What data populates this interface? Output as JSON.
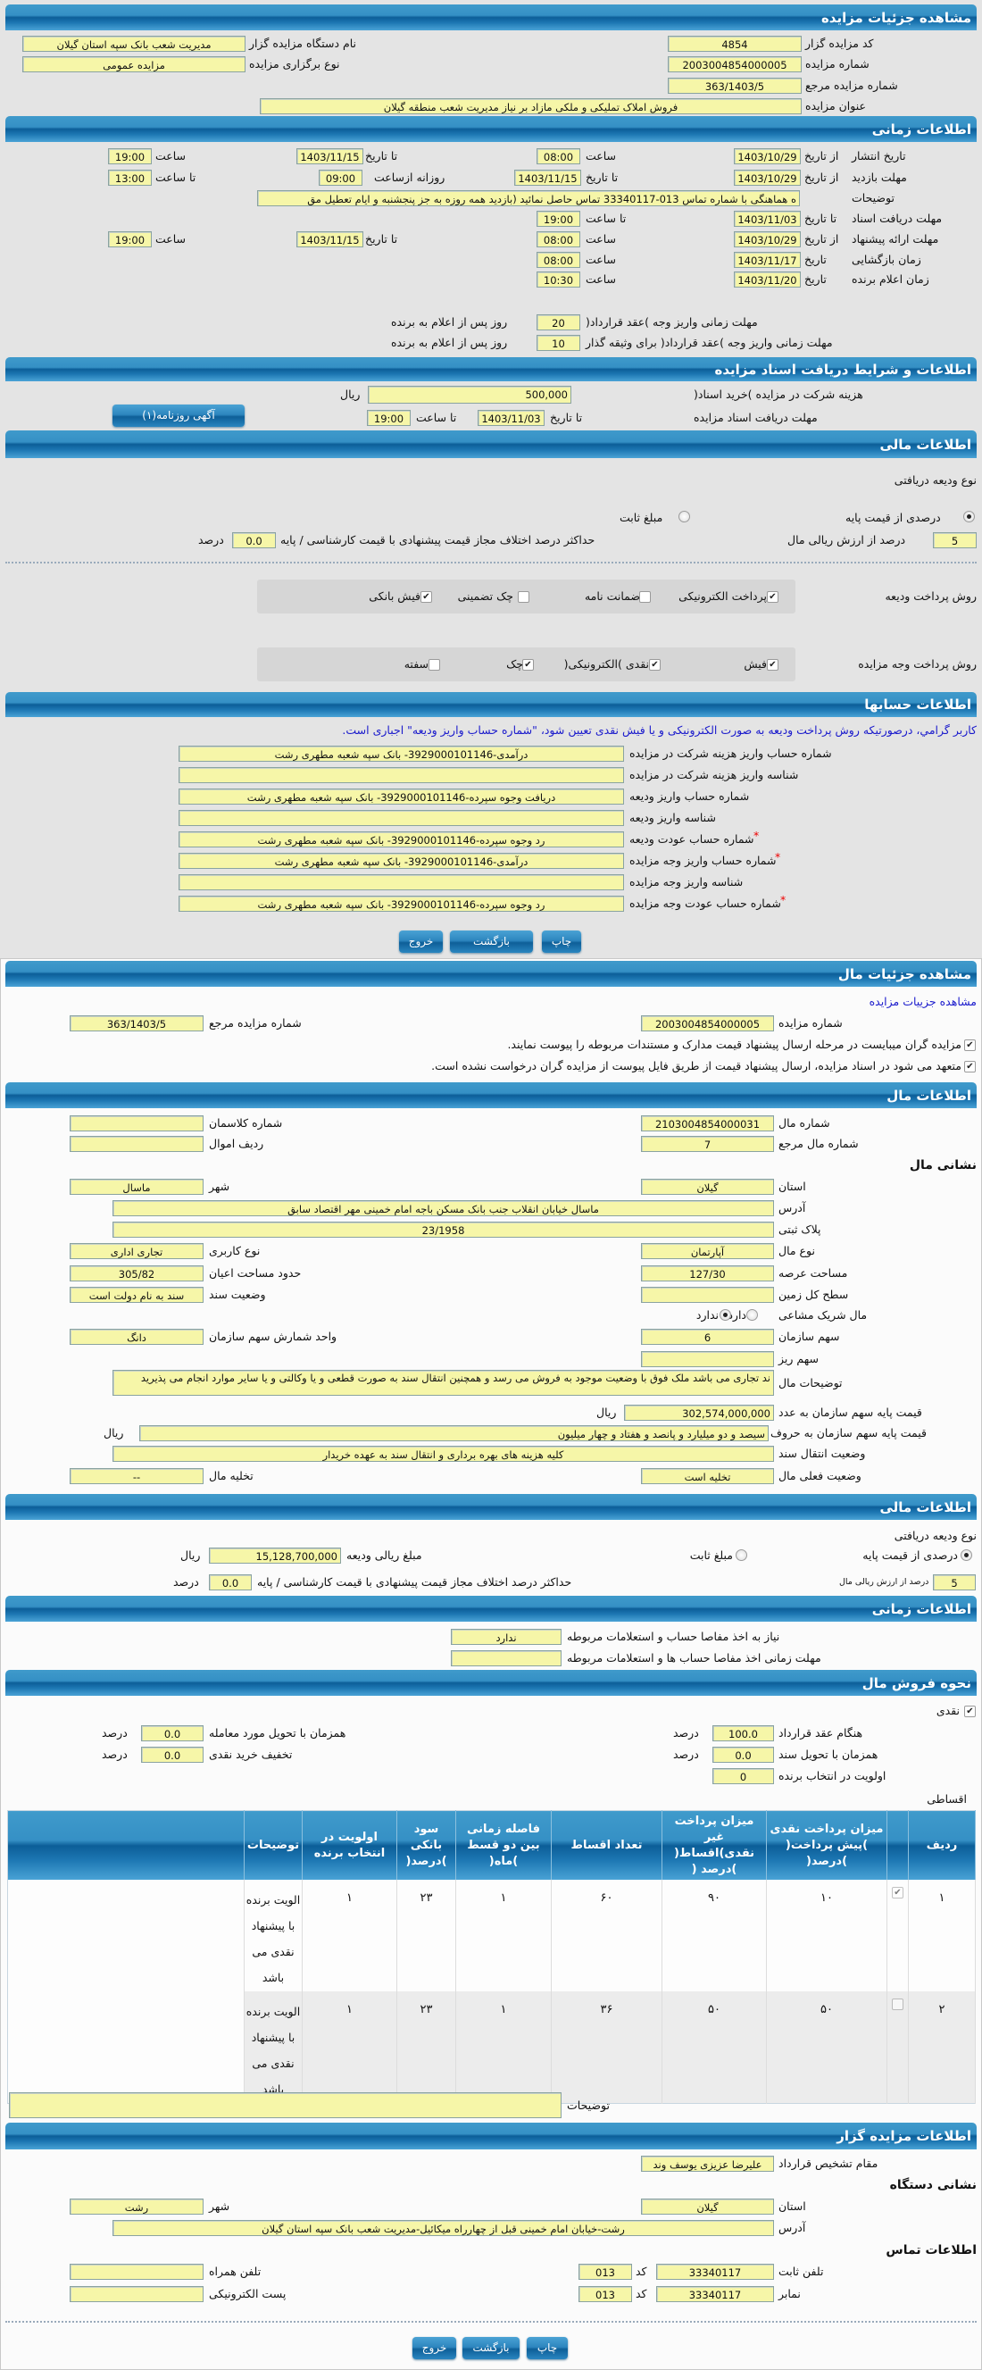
{
  "auction_details": {
    "title": "مشاهده جزئیات مزایده",
    "code_label": "کد مزایده گزار",
    "code": "4854",
    "org_label": "نام دستگاه مزایده گزار",
    "org": "مدیریت شعب بانک سپه استان گیلان",
    "number_label": "شماره مزایده",
    "number": "2003004854000005",
    "type_label": "نوع برگزاری مزایده",
    "type": "مزایده عمومی",
    "ref_label": "شماره مزایده مرجع",
    "ref": "363/1403/5",
    "subject_label": "عنوان مزایده",
    "subject": "فروش املاک تملیکی و ملکی مازاد بر نیاز مدیریت شعب منطقه گیلان"
  },
  "timing": {
    "title": "اطلاعات زمانی",
    "publish": {
      "label": "تاریخ انتشار",
      "from_label": "از تاریخ",
      "from": "1403/10/29",
      "time_label": "ساعت",
      "from_time": "08:00",
      "to_label": "تا تاریخ",
      "to": "1403/11/15",
      "to_time_label": "ساعت",
      "to_time": "19:00"
    },
    "visit": {
      "label": "مهلت بازدید",
      "from_label": "از تاریخ",
      "from": "1403/10/29",
      "to_label": "تا تاریخ",
      "to": "1403/11/15",
      "daily_from_label": "روزانه ازساعت",
      "daily_from": "09:00",
      "to_time_label": "تا ساعت",
      "to_time": "13:00"
    },
    "notes_label": "توضیحات",
    "notes": "ه هماهنگی با شماره تماس 013-33340117 تماس حاصل نمائید (بازدید همه روزه به جز پنجشنبه و ایام تعطیل مق",
    "docs_deadline": {
      "label": "مهلت دریافت اسناد",
      "to_label": "تا تاریخ",
      "to": "1403/11/03",
      "time_label": "تا ساعت",
      "time": "19:00"
    },
    "offer": {
      "label": "مهلت ارائه پیشنهاد",
      "from_label": "از تاریخ",
      "from": "1403/10/29",
      "time_label": "ساعت",
      "from_time": "08:00",
      "to_label": "تا تاریخ",
      "to": "1403/11/15",
      "to_time_label": "ساعت",
      "to_time": "19:00"
    },
    "opening": {
      "label": "زمان بازگشایی",
      "date_label": "تاریخ",
      "date": "1403/11/17",
      "time_label": "ساعت",
      "time": "08:00"
    },
    "winner": {
      "label": "زمان اعلام برنده",
      "date_label": "تاریخ",
      "date": "1403/11/20",
      "time_label": "ساعت",
      "time": "10:30"
    },
    "payment_deadline": {
      "label": "مهلت زمانی واریز وجه )عقد قرارداد(",
      "days": "20",
      "suffix": "روز پس از اعلام به برنده"
    },
    "pledger_deadline": {
      "label": "مهلت زمانی واریز وجه )عقد قرارداد( برای وثیقه گذار",
      "days": "10",
      "suffix": "روز پس از اعلام به برنده"
    }
  },
  "docs": {
    "title": "اطلاعات و شرایط دریافت اسناد مزایده",
    "fee_label": "هزینه شرکت در مزایده )خرید اسناد(",
    "fee": "500,000",
    "currency": "ریال",
    "deadline_label": "مهلت دریافت اسناد مزایده",
    "to_label": "تا تاریخ",
    "to": "1403/11/03",
    "time_label": "تا ساعت",
    "time": "19:00",
    "newspaper_button": "آگهی روزنامه(۱)"
  },
  "finance": {
    "title": "اطلاعات مالی",
    "deposit_type_label": "نوع ودیعه دریافتی",
    "percent_option": "درصدی از قیمت پایه",
    "fixed_option": "مبلغ ثابت",
    "selected": "percent",
    "percent": "5",
    "percent_suffix": "درصد از ارزش ریالی مال",
    "max_diff_label": "حداکثر درصد اختلاف مجاز قیمت پیشنهادی با قیمت کارشناسی / پایه",
    "max_diff": "0.0",
    "unit": "درصد",
    "deposit_methods_label": "روش پرداخت ودیعه",
    "deposit_methods": [
      {
        "label": "پرداخت الکترونیکی",
        "checked": true
      },
      {
        "label": "ضمانت نامه",
        "checked": false
      },
      {
        "label": "چک تضمینی",
        "checked": false
      },
      {
        "label": "فیش بانکی",
        "checked": true
      }
    ],
    "payment_methods_label": "روش پرداخت وجه مزایده",
    "payment_methods": [
      {
        "label": "فیش",
        "checked": true
      },
      {
        "label": "نقدی )الکترونیکی(",
        "checked": true
      },
      {
        "label": "چک",
        "checked": true
      },
      {
        "label": "سفته",
        "checked": false
      }
    ]
  },
  "accounts": {
    "title": "اطلاعات حسابها",
    "note": "کاربر گرامي، درصورتیکه روش پرداخت ودیعه به صورت الکترونیکی و یا فیش نقدی تعیین شود، \"شماره حساب واریز ودیعه\" اجباری است.",
    "rows": [
      {
        "label": "شماره حساب واریز هزینه شرکت در مزایده",
        "value": "درآمدی-3929000101146- بانک سپه شعبه مطهری رشت",
        "required": false
      },
      {
        "label": "شناسه واریز هزینه شرکت در مزایده",
        "value": "",
        "required": false
      },
      {
        "label": "شماره حساب واریز ودیعه",
        "value": "دریافت وجوه سپرده-3929000101146- بانک سپه شعبه مطهری رشت",
        "required": false
      },
      {
        "label": "شناسه واریز ودیعه",
        "value": "",
        "required": false
      },
      {
        "label": "شماره حساب عودت ودیعه",
        "value": "رد وجوه سپرده-3929000101146- بانک سپه شعبه مطهری رشت",
        "required": true
      },
      {
        "label": "شماره حساب واریز وجه مزایده",
        "value": "درآمدی-3929000101146- بانک سپه شعبه مطهری رشت",
        "required": true
      },
      {
        "label": "شناسه واریز وجه مزایده",
        "value": "",
        "required": false
      },
      {
        "label": "شماره حساب عودت وجه مزایده",
        "value": "رد وجوه سپرده-3929000101146- بانک سپه شعبه مطهری رشت",
        "required": true
      }
    ],
    "required_mark": "*"
  },
  "actions": {
    "print": "چاپ",
    "back": "بازگشت",
    "exit": "خروج"
  },
  "item_details": {
    "title": "مشاهده جزئیات مال",
    "link": "مشاهده جزییات مزایده",
    "number_label": "شماره مزایده",
    "number": "2003004854000005",
    "ref_label": "شماره مزایده مرجع",
    "ref": "363/1403/5",
    "attach_note": "مزایده گران میبایست در مرحله ارسال پیشنهاد قیمت مدارک و مستندات مربوطه را پیوست نمایند.",
    "attach_checked": true,
    "commit_note": "متعهد می شود در اسناد مزایده، ارسال پیشنهاد قیمت از طریق فایل پیوست از مزایده گران درخواست نشده است.",
    "commit_checked": true
  },
  "item": {
    "title": "اطلاعات مال",
    "number_label": "شماره مال",
    "number": "2103004854000031",
    "class_label": "شماره کلاسمان",
    "class": "",
    "ref_label": "شماره مال مرجع",
    "ref": "7",
    "asset_row_label": "ردیف اموال",
    "asset_row": "",
    "address_heading": "نشانی مال",
    "province_label": "استان",
    "province": "گیلان",
    "city_label": "شهر",
    "city": "ماسال",
    "address_label": "آدرس",
    "address": "ماسال خیابان انقلاب جنب بانک مسکن باجه امام خمینی مهر اقتصاد سابق",
    "plate_label": "پلاک ثبتی",
    "plate": "23/1958",
    "kind_label": "نوع مال",
    "kind": "آپارتمان",
    "usage_label": "نوع کاربری",
    "usage": "تجاری اداری",
    "land_area_label": "مساحت عرصه",
    "land_area": "127/30",
    "building_area_label": "حدود مساحت اعیان",
    "building_area": "305/82",
    "total_land_label": "سطح کل زمین",
    "total_land": "",
    "deed_status_label": "وضعیت سند",
    "deed_status": "سند به نام دولت است",
    "shared_label": "مال شریک مشاعی",
    "shared_yes": "دارد",
    "shared_no": "ندارد",
    "shared": "no",
    "share_label": "سهم سازمان",
    "share": "6",
    "share_unit_label": "واحد شمارش سهم سازمان",
    "share_unit": "دانگ",
    "share_detail_label": "سهم ریز",
    "share_detail": "",
    "description_label": "توضیحات مال",
    "description": "ند تجاری می باشد ملک فوق با وضعیت موجود به فروش می رسد و همچنین انتقال سند به صورت قطعی و یا وکالتی و یا سایر موارد انجام می پذیرید",
    "price_num_label": "قیمت پایه سهم سازمان به عدد",
    "price_num": "302,574,000,000",
    "currency": "ریال",
    "price_text_label": "قیمت پایه سهم سازمان به حروف",
    "price_text": "سیصد و دو میلیارد و پانصد و هفتاد و چهار میلیون",
    "transfer_label": "وضعیت انتقال سند",
    "transfer": "کلیه هزینه های بهره برداری و انتقال سند به عهده خریدار",
    "status_label": "وضعیت فعلی مال",
    "status": "تخلیه است",
    "evacuation_label": "تخلیه مال",
    "evacuation": "--"
  },
  "item_finance": {
    "title": "اطلاعات مالی",
    "deposit_type_label": "نوع ودیعه دریافتی",
    "percent_option": "درصدی از قیمت پایه",
    "fixed_option": "مبلغ ثابت",
    "selected": "percent",
    "amount_label": "مبلغ ریالی ودیعه",
    "amount": "15,128,700,000",
    "currency": "ریال",
    "percent": "5",
    "percent_suffix": "درصد از ارزش ریالی مال",
    "max_diff_label": "حداکثر درصد اختلاف مجاز قیمت پیشنهادی با قیمت کارشناسی / پایه",
    "max_diff": "0.0",
    "unit": "درصد"
  },
  "item_timing": {
    "title": "اطلاعات زمانی",
    "clearance_label": "نیاز به اخذ مفاصا حساب و استعلامات مربوطه",
    "clearance": "ندارد",
    "clearance_deadline_label": "مهلت زمانی اخذ مفاصا حساب ها و استعلامات مربوطه",
    "clearance_deadline": ""
  },
  "sale": {
    "title": "نحوه فروش مال",
    "cash_label": "نقدی",
    "cash_checked": true,
    "unit": "درصد",
    "on_contract_label": "هنگام عقد قرارداد",
    "on_contract": "100.0",
    "on_delivery_label": "همزمان با تحویل مورد معامله",
    "on_delivery": "0.0",
    "on_deed_label": "همزمان با تحویل سند",
    "on_deed": "0.0",
    "discount_label": "تخفیف خرید نقدی",
    "discount": "0.0",
    "priority_label": "اولویت در انتخاب برنده",
    "priority": "0",
    "installment_label": "اقساطی",
    "table": {
      "columns": [
        "ردیف",
        "",
        "میزان پرداخت نقدی )پیش پرداخت( )درصد(",
        "میزان پرداخت غیر نقدی)اقساط( )درصد (",
        "تعداد اقساط",
        "فاصله زمانی بین دو قسط )ماه(",
        "سود بانکی )درصد(",
        "اولویت در انتخاب برنده",
        "توضیحات",
        ""
      ],
      "rows": [
        {
          "row": "۱",
          "checked": true,
          "cash": "۱۰",
          "non_cash": "۹۰",
          "count": "۶۰",
          "interval": "۱",
          "interest": "۲۳",
          "priority": "۱",
          "notes": "الویت برنده با پیشنهاد نقدی می باشد"
        },
        {
          "row": "۲",
          "checked": false,
          "cash": "۵۰",
          "non_cash": "۵۰",
          "count": "۳۶",
          "interval": "۱",
          "interest": "۲۳",
          "priority": "۱",
          "notes": "الویت برنده با پیشنهاد نقدی می باشد"
        }
      ]
    },
    "notes_label": "توضیحات",
    "notes": ""
  },
  "seller": {
    "title": "اطلاعات مزایده گزار",
    "authority_label": "مقام تشخیص قرارداد",
    "authority": "علیرضا عزیزی یوسف وند",
    "address_heading": "نشانی دستگاه",
    "province_label": "استان",
    "province": "گیلان",
    "city_label": "شهر",
    "city": "رشت",
    "address_label": "آدرس",
    "address": "رشت-خیابان امام خمینی قبل از چهارراه میکائیل-مدیریت شعب بانک سپه استان گیلان",
    "contact_heading": "اطلاعات تماس",
    "phone_label": "تلفن ثابت",
    "phone": "33340117",
    "code_label": "کد",
    "phone_code": "013",
    "mobile_label": "تلفن همراه",
    "mobile": "",
    "fax_label": "نمابر",
    "fax": "33340117",
    "fax_code": "013",
    "email_label": "پست الکترونیکی",
    "email": ""
  },
  "colors": {
    "header": "#1c76b2",
    "field": "#f6f6a8",
    "panel": "#e4e4e4",
    "note": "#1a1acc",
    "required": "#e00000"
  }
}
